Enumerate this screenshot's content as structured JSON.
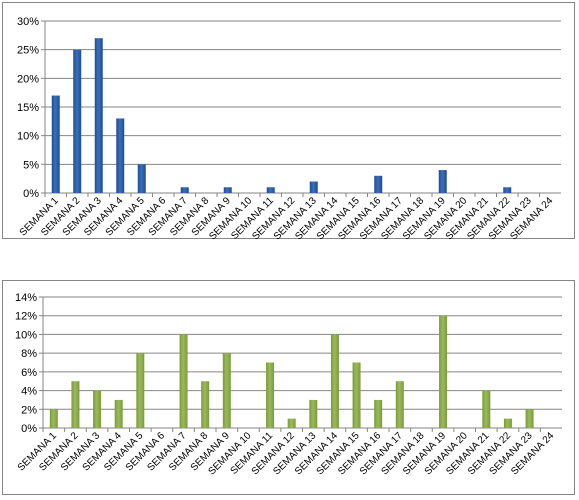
{
  "chart_data": [
    {
      "type": "bar",
      "categories": [
        "SEMANA 1",
        "SEMANA 2",
        "SEMANA 3",
        "SEMANA 4",
        "SEMANA 5",
        "SEMANA 6",
        "SEMANA 7",
        "SEMANA 8",
        "SEMANA 9",
        "SEMANA 10",
        "SEMANA 11",
        "SEMANA 12",
        "SEMANA 13",
        "SEMANA 14",
        "SEMANA 15",
        "SEMANA 16",
        "SEMANA 17",
        "SEMANA 18",
        "SEMANA 19",
        "SEMANA 20",
        "SEMANA 21",
        "SEMANA 22",
        "SEMANA 23",
        "SEMANA 24"
      ],
      "series": [
        {
          "values": [
            17,
            25,
            27,
            13,
            5,
            0,
            1,
            0,
            1,
            0,
            1,
            0,
            2,
            0,
            0,
            3,
            0,
            0,
            4,
            0,
            0,
            1,
            0,
            0
          ]
        }
      ],
      "ylim": [
        0,
        30
      ],
      "yticks": [
        "0%",
        "5%",
        "10%",
        "15%",
        "20%",
        "25%",
        "30%"
      ],
      "ytick_values": [
        0,
        5,
        10,
        15,
        20,
        25,
        30
      ],
      "grid": true,
      "bar_color": "#3a6fc0",
      "bar_color_dark": "#1f4e8c"
    },
    {
      "type": "bar",
      "categories": [
        "SEMANA 1",
        "SEMANA 2",
        "SEMANA 3",
        "SEMANA 4",
        "SEMANA 5",
        "SEMANA 6",
        "SEMANA 7",
        "SEMANA 8",
        "SEMANA 9",
        "SEMANA 10",
        "SEMANA 11",
        "SEMANA 12",
        "SEMANA 13",
        "SEMANA 14",
        "SEMANA 15",
        "SEMANA 16",
        "SEMANA 17",
        "SEMANA 18",
        "SEMANA 19",
        "SEMANA 20",
        "SEMANA 21",
        "SEMANA 22",
        "SEMANA 23",
        "SEMANA 24"
      ],
      "series": [
        {
          "values": [
            2,
            5,
            4,
            3,
            8,
            0,
            10,
            5,
            8,
            0,
            7,
            1,
            3,
            10,
            7,
            3,
            5,
            0,
            12,
            0,
            4,
            1,
            2,
            0
          ]
        }
      ],
      "ylim": [
        0,
        14
      ],
      "yticks": [
        "0%",
        "2%",
        "4%",
        "6%",
        "8%",
        "10%",
        "12%",
        "14%"
      ],
      "ytick_values": [
        0,
        2,
        4,
        6,
        8,
        10,
        12,
        14
      ],
      "grid": true,
      "bar_color": "#9bbb59",
      "bar_color_dark": "#7a9a3d"
    }
  ]
}
